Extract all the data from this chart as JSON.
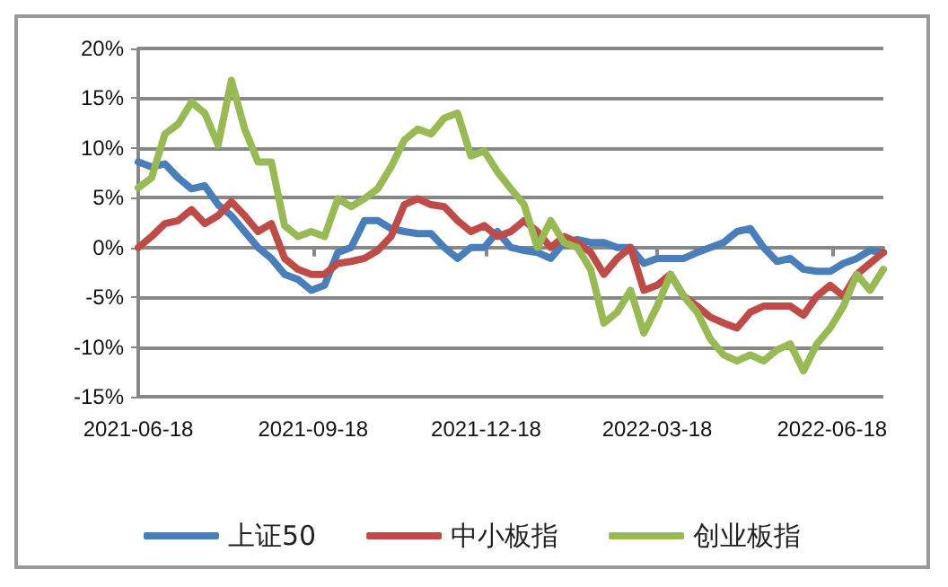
{
  "chart_data": {
    "type": "line",
    "x": [
      "2021-06-18",
      "2021-06-25",
      "2021-07-02",
      "2021-07-09",
      "2021-07-16",
      "2021-07-23",
      "2021-07-30",
      "2021-08-06",
      "2021-08-13",
      "2021-08-20",
      "2021-08-27",
      "2021-09-03",
      "2021-09-10",
      "2021-09-17",
      "2021-09-24",
      "2021-10-01",
      "2021-10-08",
      "2021-10-15",
      "2021-10-22",
      "2021-10-29",
      "2021-11-05",
      "2021-11-12",
      "2021-11-19",
      "2021-11-26",
      "2021-12-03",
      "2021-12-10",
      "2021-12-17",
      "2021-12-24",
      "2021-12-31",
      "2022-01-07",
      "2022-01-14",
      "2022-01-21",
      "2022-01-28",
      "2022-02-04",
      "2022-02-11",
      "2022-02-18",
      "2022-02-25",
      "2022-03-04",
      "2022-03-11",
      "2022-03-18",
      "2022-03-25",
      "2022-04-01",
      "2022-04-08",
      "2022-04-15",
      "2022-04-22",
      "2022-04-29",
      "2022-05-06",
      "2022-05-13",
      "2022-05-20",
      "2022-05-27",
      "2022-06-03",
      "2022-06-10",
      "2022-06-17",
      "2022-06-24",
      "2022-07-01",
      "2022-07-08",
      "2022-07-15"
    ],
    "series": [
      {
        "name": "上证50",
        "color": "#4a7ebb",
        "values": [
          8.6,
          8.1,
          8.4,
          7,
          5.9,
          6.2,
          4.3,
          3.2,
          1.6,
          0,
          -1.1,
          -2.7,
          -3.2,
          -4.3,
          -3.8,
          -0.5,
          0,
          2.7,
          2.7,
          1.9,
          1.6,
          1.4,
          1.4,
          0,
          -1.1,
          0,
          0,
          1.6,
          0,
          -0.3,
          -0.5,
          -1.1,
          0.5,
          0.8,
          0.5,
          0.5,
          0,
          0,
          -1.6,
          -1.1,
          -1.1,
          -1.1,
          -0.5,
          0,
          0.5,
          1.6,
          1.9,
          0,
          -1.4,
          -1.1,
          -2.2,
          -2.4,
          -2.4,
          -1.6,
          -1.1,
          -0.3,
          -0.5
        ]
      },
      {
        "name": "中小板指",
        "color": "#be4b48",
        "values": [
          0,
          1.1,
          2.4,
          2.7,
          3.8,
          2.4,
          3.2,
          4.6,
          3.2,
          1.6,
          2.4,
          -1.1,
          -2.2,
          -2.7,
          -2.7,
          -1.6,
          -1.4,
          -1.1,
          -0.3,
          1.1,
          4.3,
          4.9,
          4.3,
          4.1,
          2.7,
          1.6,
          2.2,
          1.1,
          1.6,
          2.7,
          1.6,
          0,
          1.1,
          0.5,
          -0.5,
          -2.7,
          -1.1,
          0,
          -4.3,
          -3.8,
          -2.7,
          -4.9,
          -5.9,
          -7,
          -7.6,
          -8.1,
          -6.5,
          -5.9,
          -5.9,
          -5.9,
          -6.8,
          -4.9,
          -3.8,
          -4.9,
          -2.7,
          -1.6,
          -0.5
        ]
      },
      {
        "name": "创业板指",
        "color": "#98b954",
        "values": [
          6,
          7,
          11.4,
          12.4,
          14.6,
          13.5,
          10.3,
          16.8,
          11.9,
          8.6,
          8.6,
          2.2,
          1.1,
          1.6,
          1.1,
          4.9,
          4.1,
          4.9,
          5.9,
          8.1,
          10.8,
          11.9,
          11.4,
          13,
          13.5,
          9.2,
          9.7,
          7.6,
          5.9,
          4.3,
          0,
          2.7,
          0.5,
          0,
          -2.2,
          -7.6,
          -6.5,
          -4.3,
          -8.6,
          -5.9,
          -2.7,
          -4.9,
          -6.5,
          -9.2,
          -10.8,
          -11.4,
          -10.8,
          -11.4,
          -10.3,
          -9.7,
          -12.4,
          -9.7,
          -8.1,
          -5.9,
          -2.7,
          -4.3,
          -2.2
        ]
      }
    ],
    "xlim": [
      "2021-06-18",
      "2022-07-15"
    ],
    "xticks": [
      "2021-06-18",
      "2021-09-18",
      "2021-12-18",
      "2022-03-18",
      "2022-06-18"
    ],
    "ylim": [
      -15,
      20
    ],
    "yticks": [
      {
        "value": -15,
        "label": "-15%"
      },
      {
        "value": -10,
        "label": "-10%"
      },
      {
        "value": -5,
        "label": "-5%"
      },
      {
        "value": 0,
        "label": "0%"
      },
      {
        "value": 5,
        "label": "5%"
      },
      {
        "value": 10,
        "label": "10%"
      },
      {
        "value": 15,
        "label": "15%"
      },
      {
        "value": 20,
        "label": "20%"
      }
    ],
    "grid": "y",
    "legend": "bottom",
    "marker": "none",
    "line_style": "solid"
  }
}
